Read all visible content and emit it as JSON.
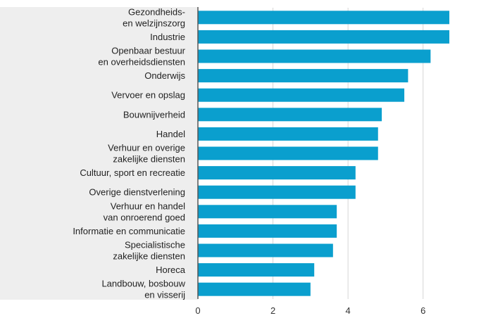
{
  "chart_data": {
    "type": "bar",
    "orientation": "horizontal",
    "categories": [
      [
        "Gezondheids-",
        "en welzijnszorg"
      ],
      [
        "Industrie"
      ],
      [
        "Openbaar bestuur",
        "en overheidsdiensten"
      ],
      [
        "Onderwijs"
      ],
      [
        "Vervoer en opslag"
      ],
      [
        "Bouwnijverheid"
      ],
      [
        "Handel"
      ],
      [
        "Verhuur en overige",
        "zakelijke diensten"
      ],
      [
        "Cultuur, sport en recreatie"
      ],
      [
        "Overige dienstverlening"
      ],
      [
        "Verhuur en handel",
        "van onroerend goed"
      ],
      [
        "Informatie en communicatie"
      ],
      [
        "Specialistische",
        "zakelijke diensten"
      ],
      [
        "Horeca"
      ],
      [
        "Landbouw, bosbouw",
        "en visserij"
      ]
    ],
    "values": [
      6.7,
      6.7,
      6.2,
      5.6,
      5.5,
      4.9,
      4.8,
      4.8,
      4.2,
      4.2,
      3.7,
      3.7,
      3.6,
      3.1,
      3.0
    ],
    "xlim": [
      0,
      7
    ],
    "xticks": [
      0,
      2,
      4,
      6
    ],
    "tick_labels": [
      "0",
      "2",
      "4",
      "6"
    ],
    "title": "",
    "xlabel": "",
    "ylabel": "",
    "grid": "vertical",
    "colors": {
      "bar": "#0a9fce",
      "label_panel": "#eeeeee",
      "axis": "#555555",
      "grid": "#d6d6d6"
    }
  }
}
